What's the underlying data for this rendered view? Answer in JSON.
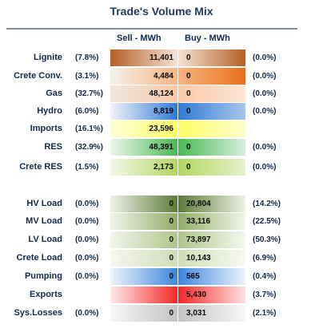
{
  "title": "Trade's Volume Mix",
  "headers": {
    "sell": "Sell - MWh",
    "buy": "Buy - MWh"
  },
  "chart_data": {
    "type": "table",
    "columns": [
      "",
      "",
      "Sell - MWh",
      "Buy - MWh",
      ""
    ],
    "rows": [
      {
        "label": "Lignite",
        "sell_pct": "(7.8%)",
        "sell": "11,401",
        "buy": "0",
        "buy_pct": "(0.0%)",
        "colors": [
          "#b45f26",
          "#f6e2d2",
          "#b45f26"
        ]
      },
      {
        "label": "Crete Conv.",
        "sell_pct": "(3.1%)",
        "sell": "4,484",
        "buy": "0",
        "buy_pct": "(0.0%)",
        "colors": [
          "#f4f0ec",
          "#f7b582",
          "#e8701d"
        ]
      },
      {
        "label": "Gas",
        "sell_pct": "(32.7%)",
        "sell": "48,124",
        "buy": "0",
        "buy_pct": "(0.0%)",
        "colors": [
          "#f0e6e0",
          "#f8c8a6",
          "#fde7d6"
        ]
      },
      {
        "label": "Hydro",
        "sell_pct": "(6.0%)",
        "sell": "8,819",
        "buy": "0",
        "buy_pct": "(0.0%)",
        "colors": [
          "#f2f4f8",
          "#2f7ad6",
          "#a9c6ea"
        ]
      },
      {
        "label": "Imports",
        "sell_pct": "(16.1%)",
        "sell": "23,596",
        "buy": "",
        "buy_pct": "",
        "colors": [
          "#fdfdd8",
          "#ffff63",
          "#ffffd0"
        ]
      },
      {
        "label": "RES",
        "sell_pct": "(32.9%)",
        "sell": "48,391",
        "buy": "0",
        "buy_pct": "(0.0%)",
        "colors": [
          "#eef6ea",
          "#48b956",
          "#d8eedc"
        ]
      },
      {
        "label": "Crete RES",
        "sell_pct": "(1.5%)",
        "sell": "2,173",
        "buy": "0",
        "buy_pct": "(0.0%)",
        "colors": [
          "#f4f8ec",
          "#b1d65c",
          "#e6f1d0"
        ]
      },
      {
        "label": "HV Load",
        "sell_pct": "(0.0%)",
        "sell": "0",
        "buy": "20,804",
        "buy_pct": "(14.2%)",
        "colors": [
          "#f0f2ea",
          "#5c7a36",
          "#eef2e6"
        ]
      },
      {
        "label": "MV Load",
        "sell_pct": "(0.0%)",
        "sell": "0",
        "buy": "33,116",
        "buy_pct": "(22.5%)",
        "colors": [
          "#f2f4ec",
          "#91ac66",
          "#f2f5ea"
        ]
      },
      {
        "label": "LV Load",
        "sell_pct": "(0.0%)",
        "sell": "0",
        "buy": "73,897",
        "buy_pct": "(50.3%)",
        "colors": [
          "#f3f6ee",
          "#aec58a",
          "#f4f8ee"
        ]
      },
      {
        "label": "Crete Load",
        "sell_pct": "(0.0%)",
        "sell": "0",
        "buy": "10,143",
        "buy_pct": "(6.9%)",
        "colors": [
          "#f6f8f0",
          "#cfdcb6",
          "#f7faf2"
        ]
      },
      {
        "label": "Pumping",
        "sell_pct": "(0.0%)",
        "sell": "0",
        "buy": "565",
        "buy_pct": "(0.4%)",
        "colors": [
          "#f0f4fa",
          "#3b86dd",
          "#eef4fc"
        ]
      },
      {
        "label": "Exports",
        "sell_pct": "",
        "sell": "",
        "buy": "5,430",
        "buy_pct": "(3.7%)",
        "colors": [
          "#fdeaea",
          "#f42828",
          "#fde2e2"
        ]
      },
      {
        "label": "Sys.Losses",
        "sell_pct": "(0.0%)",
        "sell": "0",
        "buy": "3,031",
        "buy_pct": "(2.1%)",
        "colors": [
          "#f6f6f6",
          "#c4c4c4",
          "#f6f6f6"
        ]
      }
    ]
  }
}
